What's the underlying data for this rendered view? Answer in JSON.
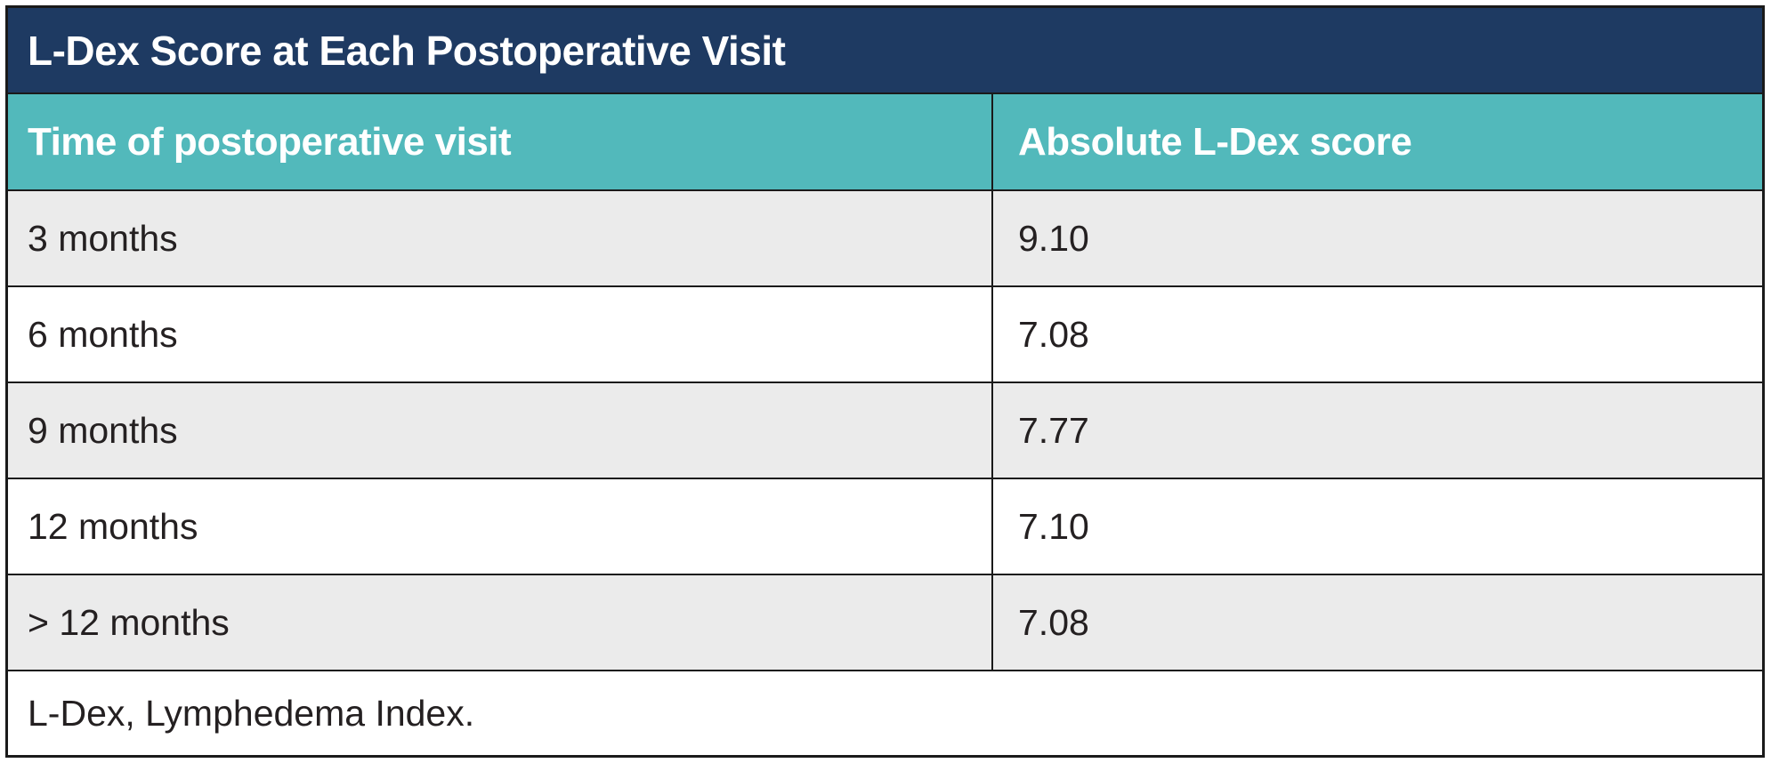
{
  "table": {
    "title": "L-Dex Score at Each Postoperative Visit",
    "columns": [
      "Time of postoperative visit",
      "Absolute L-Dex score"
    ],
    "rows": [
      {
        "time": "3 months",
        "score": "9.10"
      },
      {
        "time": "6 months",
        "score": "7.08"
      },
      {
        "time": "9 months",
        "score": "7.77"
      },
      {
        "time": "12 months",
        "score": "7.10"
      },
      {
        "time": "> 12 months",
        "score": "7.08"
      }
    ],
    "footnote": "L-Dex, Lymphedema Index."
  },
  "colors": {
    "title_bar_bg": "#1e3a62",
    "header_bg": "#52b9bb",
    "shaded_row_bg": "#ebebeb",
    "plain_row_bg": "#ffffff",
    "border": "#1a1a1a",
    "title_text": "#ffffff",
    "header_text": "#ffffff",
    "body_text": "#242021"
  },
  "chart_data": {
    "type": "table",
    "title": "L-Dex Score at Each Postoperative Visit",
    "columns": [
      "Time of postoperative visit",
      "Absolute L-Dex score"
    ],
    "rows": [
      [
        "3 months",
        9.1
      ],
      [
        "6 months",
        7.08
      ],
      [
        "9 months",
        7.77
      ],
      [
        "12 months",
        7.1
      ],
      [
        "> 12 months",
        7.08
      ]
    ],
    "footnote": "L-Dex, Lymphedema Index."
  }
}
